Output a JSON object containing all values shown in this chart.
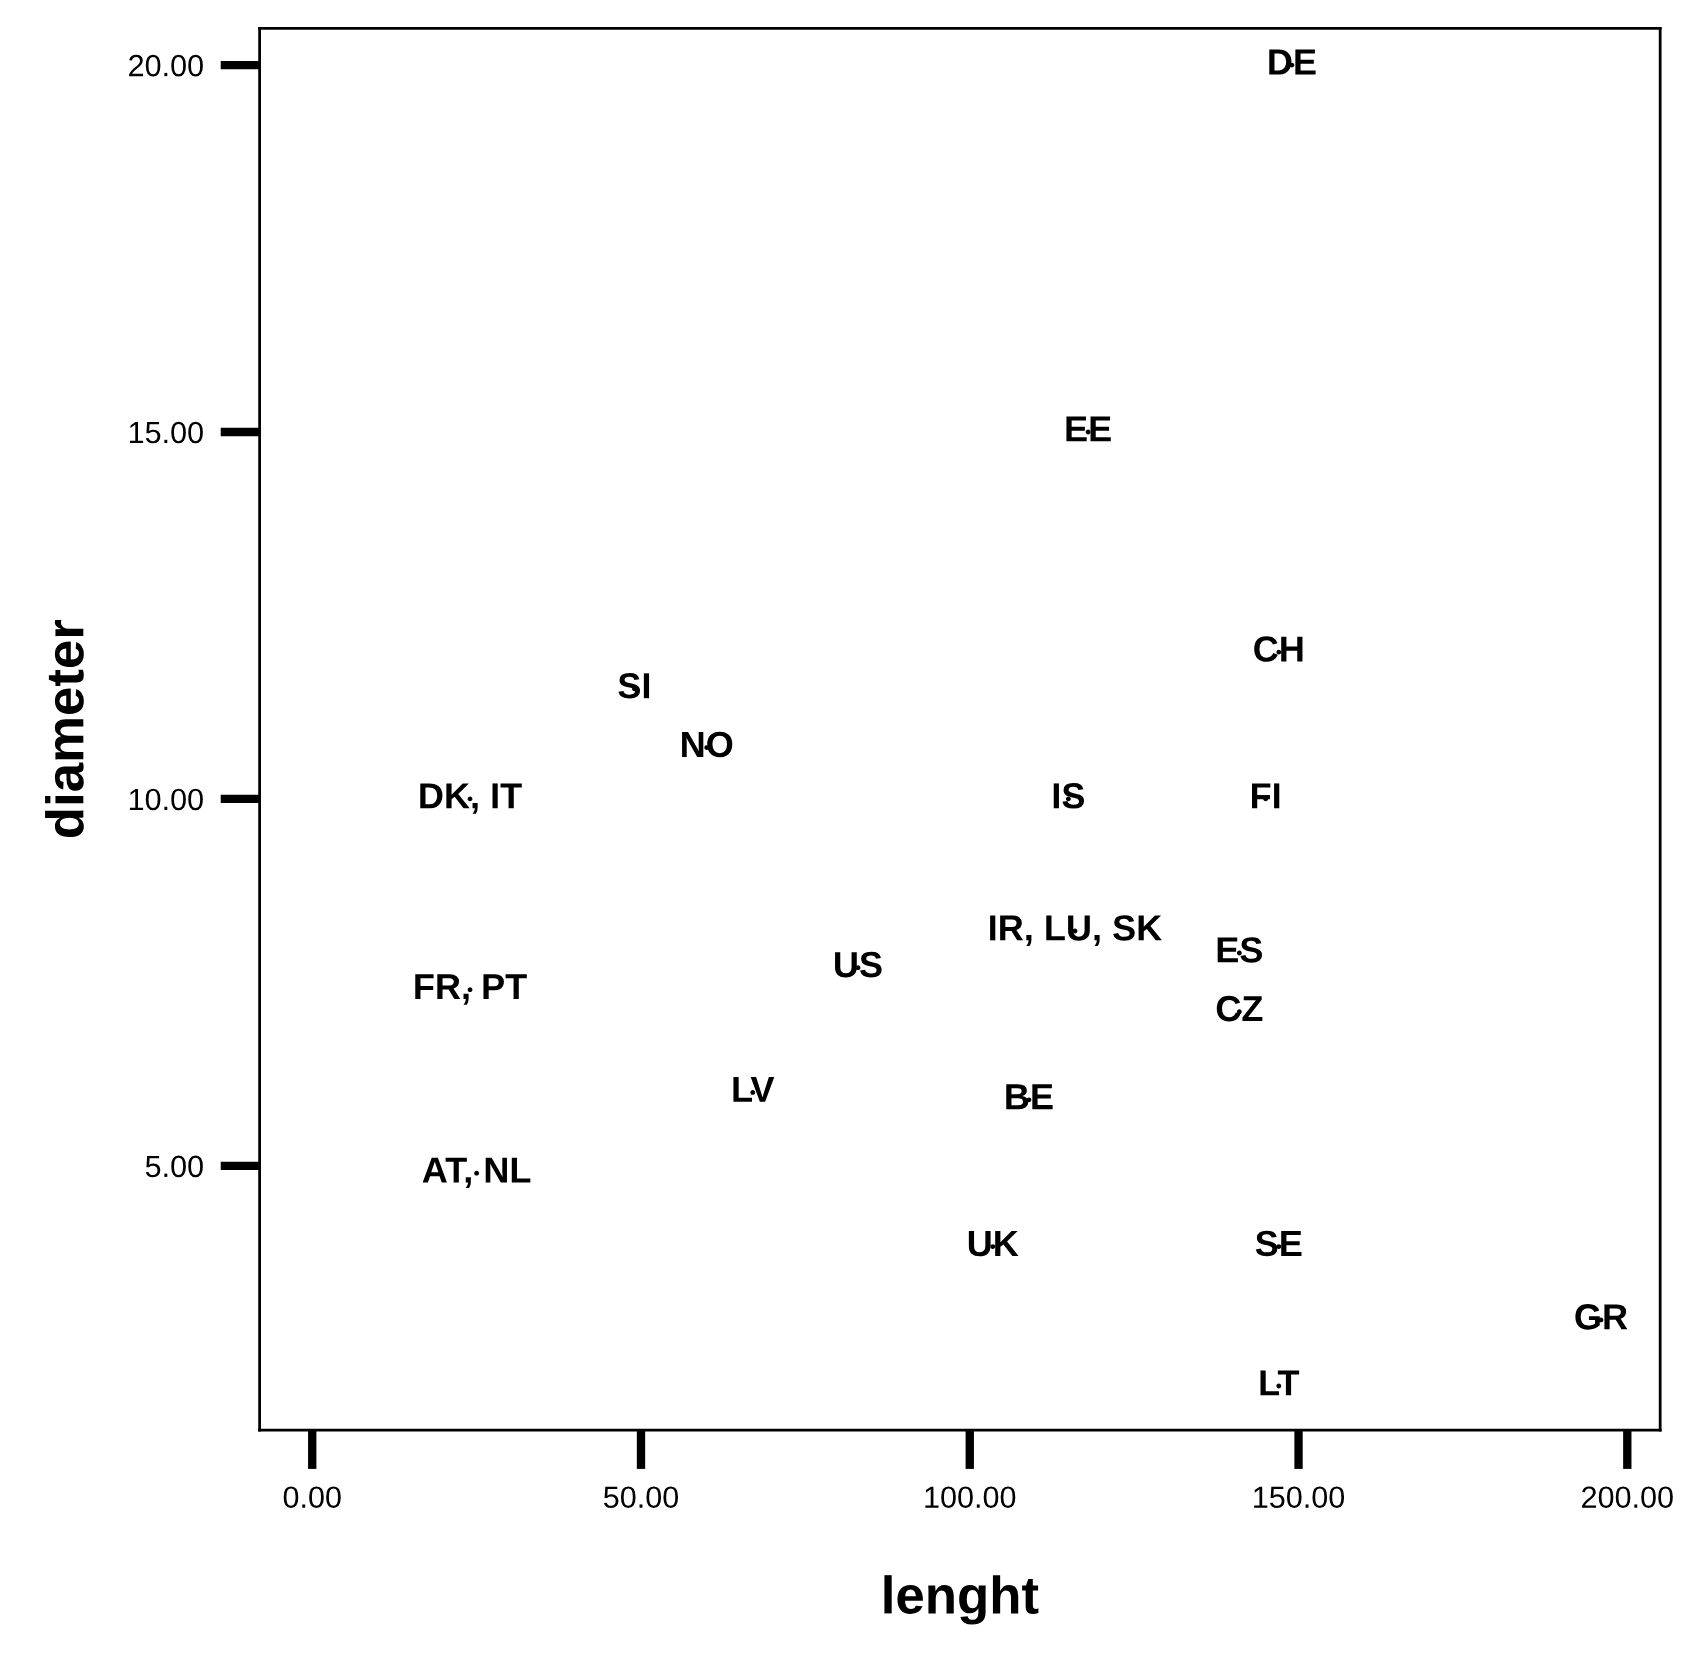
{
  "chart_data": {
    "type": "scatter",
    "xlabel": "lenght",
    "ylabel": "diameter",
    "marker": "none",
    "grid": false,
    "legend": false,
    "xlim": [
      -8,
      205
    ],
    "ylim": [
      1.4,
      20.5
    ],
    "xticks": [
      {
        "value": 0,
        "label": "0.00"
      },
      {
        "value": 50,
        "label": "50.00"
      },
      {
        "value": 100,
        "label": "100.00"
      },
      {
        "value": 150,
        "label": "150.00"
      },
      {
        "value": 200,
        "label": "200.00"
      }
    ],
    "yticks": [
      {
        "value": 5,
        "label": "5.00"
      },
      {
        "value": 10,
        "label": "10.00"
      },
      {
        "value": 15,
        "label": "15.00"
      },
      {
        "value": 20,
        "label": "20.00"
      }
    ],
    "series": [
      {
        "color": "#000000",
        "x": [
          149,
          118,
          147,
          49,
          60,
          24,
          115,
          145,
          116,
          83,
          141,
          141,
          24,
          67,
          109,
          25,
          103.5,
          147,
          196,
          147
        ],
        "values": [
          20,
          15,
          12,
          11.5,
          10.7,
          10,
          10,
          10,
          8.2,
          7.7,
          7.9,
          7.1,
          7.4,
          6.0,
          5.9,
          4.9,
          3.9,
          3.9,
          2.9,
          2.0
        ],
        "value_labels": [
          "DE",
          "EE",
          "CH",
          "SI",
          "NO",
          "DK, IT",
          "IS",
          "FI",
          "IR, LU, SK",
          "US",
          "ES",
          "CZ",
          "FR, PT",
          "LV",
          "BE",
          "AT, NL",
          "UK",
          "SE",
          "GR",
          "LT"
        ]
      }
    ]
  }
}
